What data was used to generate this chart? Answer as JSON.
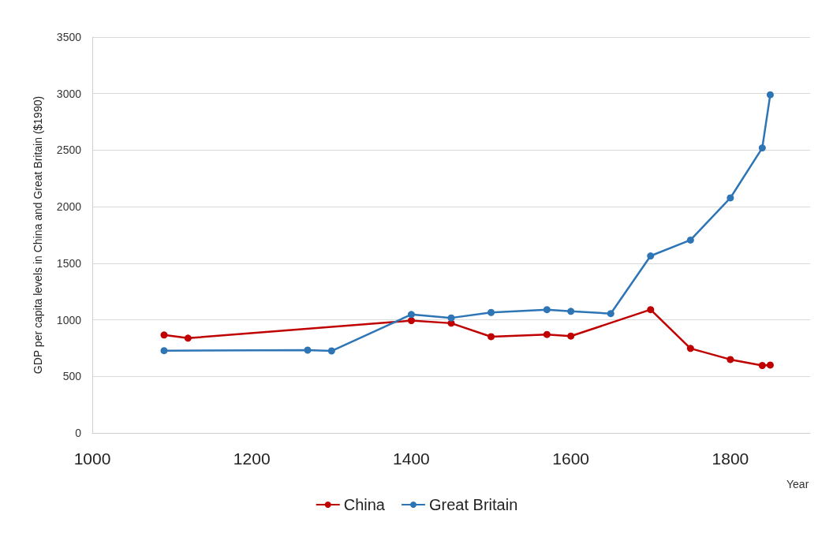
{
  "chart_data": {
    "type": "line",
    "xlabel": "Year",
    "ylabel": "GDP per capita levels in China and Great Britain ($1990)",
    "xlim": [
      1000,
      1900
    ],
    "xticks": [
      1000,
      1200,
      1400,
      1600,
      1800
    ],
    "ylim": [
      0,
      3500
    ],
    "yticks": [
      0,
      500,
      1000,
      1500,
      2000,
      2500,
      3000,
      3500
    ],
    "grid": "y",
    "legend": "bottom",
    "marker": "circle",
    "line_style": "solid",
    "series": [
      {
        "name": "China",
        "color": "#c00000",
        "x": [
          1090,
          1120,
          1400,
          1450,
          1500,
          1570,
          1600,
          1700,
          1750,
          1800,
          1840,
          1850
        ],
        "values": [
          866,
          838,
          993,
          970,
          851,
          870,
          856,
          1090,
          747,
          649,
          596,
          600
        ]
      },
      {
        "name": "Great Britain",
        "color": "#2e75b6",
        "x": [
          1090,
          1270,
          1300,
          1400,
          1450,
          1500,
          1570,
          1600,
          1650,
          1700,
          1750,
          1800,
          1840,
          1850
        ],
        "values": [
          727,
          732,
          725,
          1047,
          1017,
          1065,
          1090,
          1075,
          1055,
          1565,
          1705,
          2078,
          2520,
          2990
        ]
      }
    ]
  }
}
